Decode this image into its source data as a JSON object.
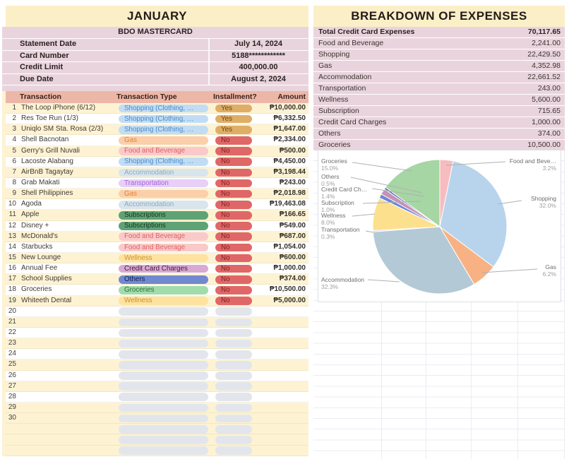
{
  "left_panel": {
    "title": "JANUARY",
    "card_name": "BDO MASTERCARD",
    "info_rows": [
      {
        "label": "Statement Date",
        "value": "July 14, 2024"
      },
      {
        "label": "Card Number",
        "value": "5188************"
      },
      {
        "label": "Credit Limit",
        "value": "400,000.00"
      },
      {
        "label": "Due Date",
        "value": "August 2, 2024"
      }
    ],
    "columns": [
      "Transaction",
      "Transaction Type",
      "Installment?",
      "Amount"
    ],
    "transactions": [
      {
        "num": "1",
        "name": "The Loop iPhone (6/12)",
        "type_key": "shopping",
        "installment": "Yes",
        "amount": "₱10,000.00"
      },
      {
        "num": "2",
        "name": "Res Toe Run (1/3)",
        "type_key": "shopping",
        "installment": "Yes",
        "amount": "₱6,332.50"
      },
      {
        "num": "3",
        "name": "Uniqlo SM Sta. Rosa (2/3)",
        "type_key": "shopping",
        "installment": "Yes",
        "amount": "₱1,647.00"
      },
      {
        "num": "4",
        "name": "Shell Bacnotan",
        "type_key": "gas",
        "installment": "No",
        "amount": "₱2,334.00"
      },
      {
        "num": "5",
        "name": "Gerry's Grill Nuvali",
        "type_key": "food",
        "installment": "No",
        "amount": "₱500.00"
      },
      {
        "num": "6",
        "name": "Lacoste Alabang",
        "type_key": "shopping",
        "installment": "No",
        "amount": "₱4,450.00"
      },
      {
        "num": "7",
        "name": "AirBnB Tagaytay",
        "type_key": "accommodation",
        "installment": "No",
        "amount": "₱3,198.44"
      },
      {
        "num": "8",
        "name": "Grab Makati",
        "type_key": "transportation",
        "installment": "No",
        "amount": "₱243.00"
      },
      {
        "num": "9",
        "name": "Shell Philippines",
        "type_key": "gas",
        "installment": "No",
        "amount": "₱2,018.98"
      },
      {
        "num": "10",
        "name": "Agoda",
        "type_key": "accommodation",
        "installment": "No",
        "amount": "₱19,463.08"
      },
      {
        "num": "11",
        "name": "Apple",
        "type_key": "subscriptions",
        "installment": "No",
        "amount": "₱166.65"
      },
      {
        "num": "12",
        "name": "Disney +",
        "type_key": "subscriptions",
        "installment": "No",
        "amount": "₱549.00"
      },
      {
        "num": "13",
        "name": "McDonald's",
        "type_key": "food",
        "installment": "No",
        "amount": "₱687.00"
      },
      {
        "num": "14",
        "name": "Starbucks",
        "type_key": "food",
        "installment": "No",
        "amount": "₱1,054.00"
      },
      {
        "num": "15",
        "name": "New Lounge",
        "type_key": "wellness",
        "installment": "No",
        "amount": "₱600.00"
      },
      {
        "num": "16",
        "name": "Annual Fee",
        "type_key": "creditcard",
        "installment": "No",
        "amount": "₱1,000.00"
      },
      {
        "num": "17",
        "name": "School Supplies",
        "type_key": "others",
        "installment": "No",
        "amount": "₱374.00"
      },
      {
        "num": "18",
        "name": "Groceries",
        "type_key": "groceries",
        "installment": "No",
        "amount": "₱10,500.00"
      },
      {
        "num": "19",
        "name": "Whiteeth Dental",
        "type_key": "wellness",
        "installment": "No",
        "amount": "₱5,000.00"
      }
    ],
    "empty_rows": {
      "first_num": 20,
      "last_num": 30,
      "unnumbered": 3
    },
    "type_labels": {
      "shopping": "Shopping (Clothing, …",
      "gas": "Gas",
      "food": "Food and Beverage",
      "accommodation": "Accommodation",
      "transportation": "Transportation",
      "subscriptions": "Subscriptions",
      "wellness": "Wellness",
      "creditcard": "Credit Card Charges",
      "others": "Others",
      "groceries": "Groceries"
    },
    "type_colors": {
      "shopping": {
        "bg": "#c2ddf3",
        "text": "#4b8bca"
      },
      "gas": {
        "bg": "#facfa9",
        "text": "#e2803a"
      },
      "food": {
        "bg": "#facaca",
        "text": "#e06060"
      },
      "accommodation": {
        "bg": "#d9e5ed",
        "text": "#8ea9bc"
      },
      "transportation": {
        "bg": "#e7cff7",
        "text": "#a265db"
      },
      "subscriptions": {
        "bg": "#5fa274",
        "text": "#12361f"
      },
      "wellness": {
        "bg": "#fee2a0",
        "text": "#c9912c"
      },
      "creditcard": {
        "bg": "#d9aad1",
        "text": "#45173a"
      },
      "others": {
        "bg": "#7289d0",
        "text": "#121f52"
      },
      "groceries": {
        "bg": "#a2dcaa",
        "text": "#2b6e3a"
      },
      "yes": {
        "bg": "#dfae66",
        "text": "#6a4510"
      },
      "no": {
        "bg": "#e06767",
        "text": "#7e2020"
      },
      "empty": {
        "bg": "#e2e6ec",
        "text": "#e2e6ec"
      }
    }
  },
  "right_panel": {
    "title": "BREAKDOWN OF EXPENSES",
    "breakdown": [
      {
        "label": "Total Credit Card Expenses",
        "value": "70,117.65",
        "bold": true
      },
      {
        "label": "Food and Beverage",
        "value": "2,241.00"
      },
      {
        "label": "Shopping",
        "value": "22,429.50"
      },
      {
        "label": "Gas",
        "value": "4,352.98"
      },
      {
        "label": "Accommodation",
        "value": "22,661.52"
      },
      {
        "label": "Transportation",
        "value": "243.00"
      },
      {
        "label": "Wellness",
        "value": "5,600.00"
      },
      {
        "label": "Subscription",
        "value": "715.65"
      },
      {
        "label": "Credit Card Charges",
        "value": "1,000.00"
      },
      {
        "label": "Others",
        "value": "374.00"
      },
      {
        "label": "Groceries",
        "value": "10,500.00"
      }
    ]
  },
  "chart_data": {
    "type": "pie",
    "title": "",
    "legend_position": "none",
    "labels_style": "callout-with-percent",
    "slices": [
      {
        "label": "Food and Beverage",
        "display_label": "Food and Beve…",
        "pct": 3.2,
        "color": "#f6bcbf"
      },
      {
        "label": "Shopping",
        "display_label": "Shopping",
        "pct": 32.0,
        "color": "#b8d4ec"
      },
      {
        "label": "Gas",
        "display_label": "Gas",
        "pct": 6.2,
        "color": "#f8b183"
      },
      {
        "label": "Accommodation",
        "display_label": "Accommodation",
        "pct": 32.3,
        "color": "#b3c9d6"
      },
      {
        "label": "Transportation",
        "display_label": "Transportation",
        "pct": 0.3,
        "color": "#cbb9e8"
      },
      {
        "label": "Wellness",
        "display_label": "Wellness",
        "pct": 8.0,
        "color": "#fde08d"
      },
      {
        "label": "Subscription",
        "display_label": "Subscription",
        "pct": 1.0,
        "color": "#6b85dd"
      },
      {
        "label": "Credit Card Charges",
        "display_label": "Credit Card Ch…",
        "pct": 1.4,
        "color": "#c591b5"
      },
      {
        "label": "Others",
        "display_label": "Others",
        "pct": 0.5,
        "color": "#5b68b8"
      },
      {
        "label": "Groceries",
        "display_label": "Groceries",
        "pct": 15.0,
        "color": "#a5d6a3"
      }
    ]
  },
  "colors": {
    "cream_header": "#fbefc8",
    "cream_row": "#fdf3d3",
    "pink_row": "#e9d4dd",
    "table_header_bg": "#edb7a8",
    "grid_line": "#e9ecf0",
    "pie_label_name": "#6d6d6d",
    "pie_label_pct": "#9e9e9e",
    "pie_leader_line": "#b0b0b0"
  }
}
